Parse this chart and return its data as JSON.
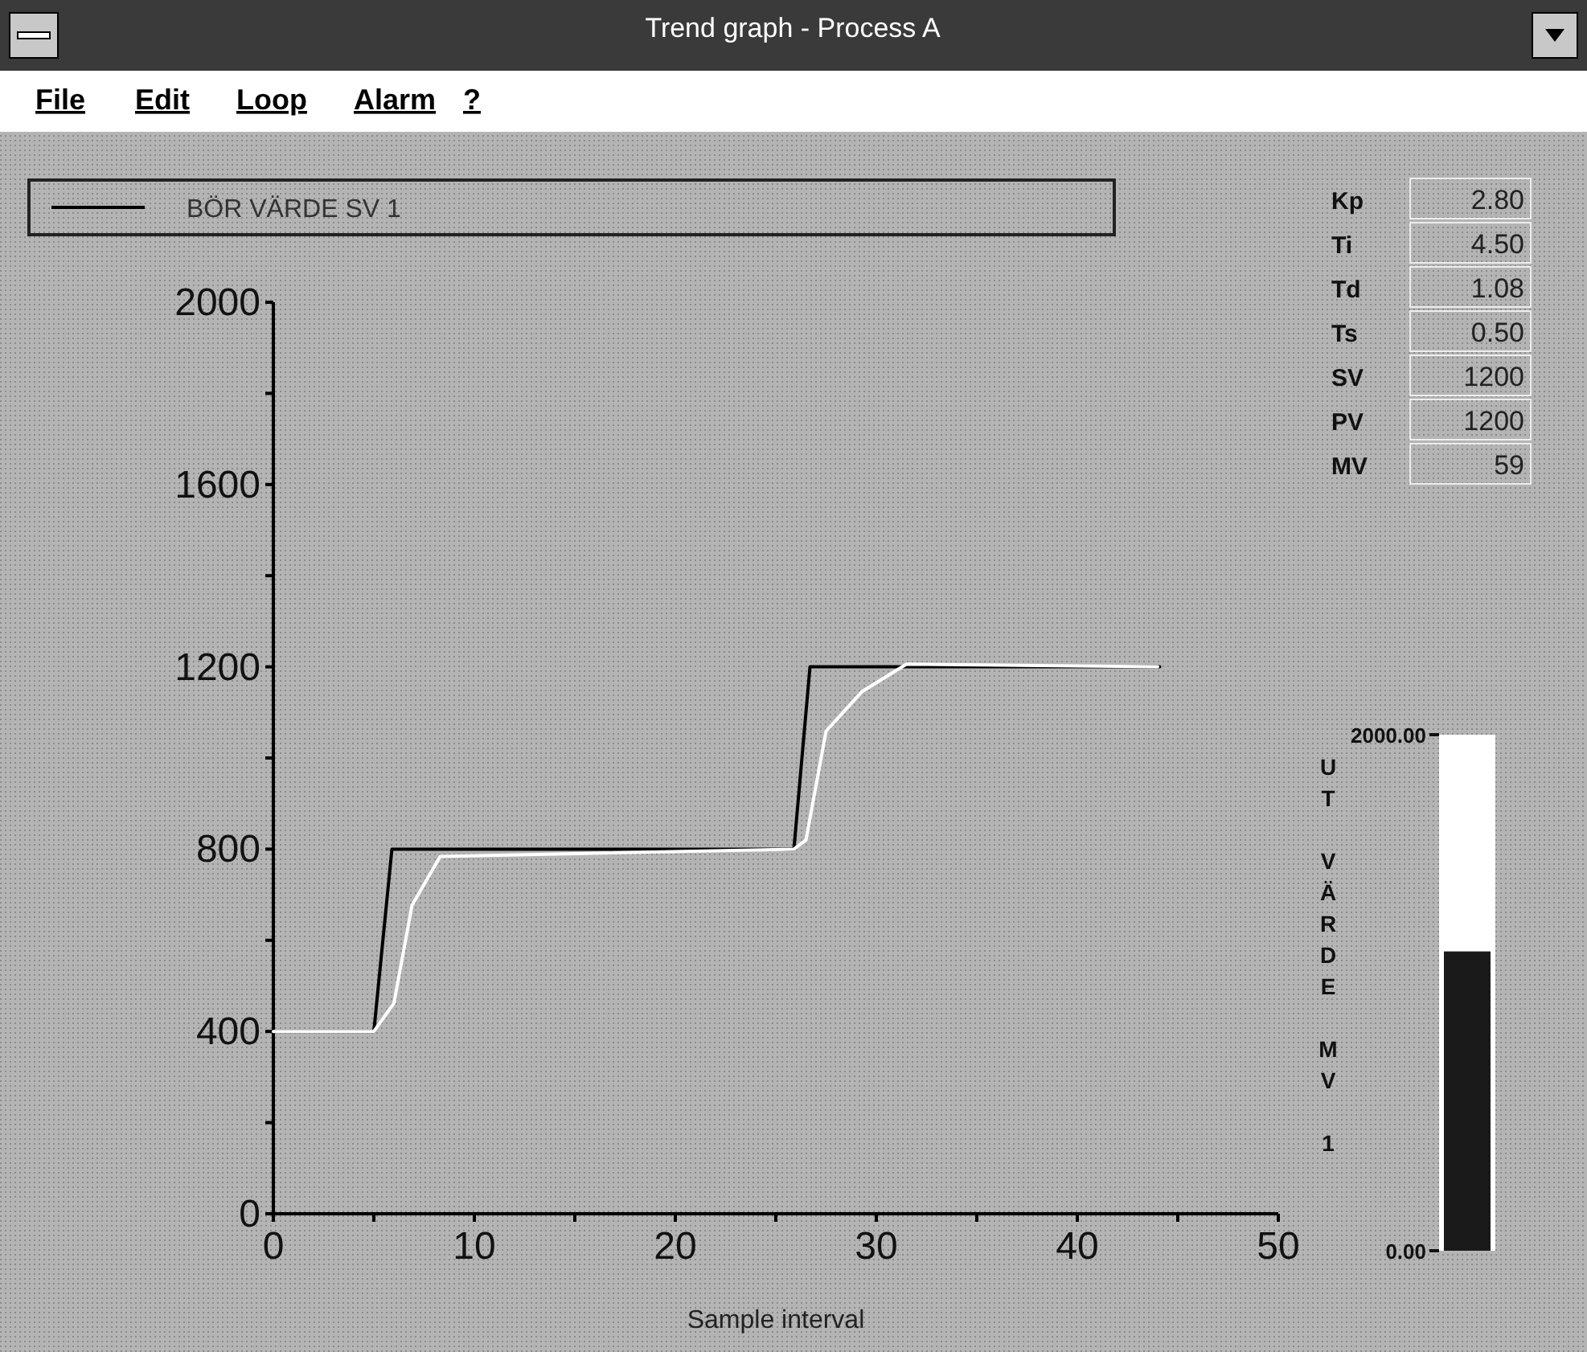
{
  "chart_data": [
    {
      "type": "line",
      "title": "Trend graph - Process A",
      "xlabel": "Sample interval",
      "annotations": [
        "File",
        "Edit",
        "Loop",
        "Alarm",
        "?"
      ],
      "xlim": [
        0,
        50
      ],
      "ylim": [
        0,
        2000
      ],
      "xticks": [
        0,
        {
          "value": 5,
          "label": null
        },
        10,
        {
          "value": 15,
          "label": null
        },
        20,
        {
          "value": 25,
          "label": null
        },
        30,
        {
          "value": 35,
          "label": null
        },
        40,
        {
          "value": 45,
          "label": null
        },
        50
      ],
      "yticks": [
        0,
        {
          "value": 200,
          "label": null
        },
        400,
        {
          "value": 600,
          "label": null
        },
        800,
        {
          "value": 1000,
          "label": null
        },
        1200,
        {
          "value": 1400,
          "label": null
        },
        1600,
        {
          "value": 1800,
          "label": null
        },
        2000
      ],
      "legend": "top left",
      "grid": false,
      "marker": "none",
      "line_style": "solid",
      "series": [
        {
          "name": "BÖR VÄRDE SV 1",
          "color": "#000000",
          "x": [
            0,
            5,
            5.9,
            25.9,
            26.7,
            44.1
          ],
          "values": [
            400,
            400,
            800,
            800,
            1200,
            1200
          ]
        },
        {
          "color": "#ffffff",
          "x": [
            0,
            5,
            6,
            6.9,
            8.3,
            25.9,
            26.5,
            27.5,
            29.3,
            31.5,
            44
          ],
          "values": [
            400,
            400,
            462,
            677,
            784,
            800,
            820,
            1059,
            1146,
            1206,
            1200
          ]
        }
      ]
    },
    {
      "type": "other",
      "categories": [
        "Kp",
        "Ti",
        "Td",
        "Ts",
        "SV",
        "PV",
        "MV"
      ],
      "value_labels": [
        "2.80",
        "4.50",
        "1.08",
        "0.50",
        "1200",
        "1200",
        "59"
      ]
    },
    {
      "type": "bar",
      "ylabel": "UT VÄRDE MV 1",
      "categories": [
        null
      ],
      "values": [
        1160
      ],
      "color": "#1a1a1a",
      "ylim": [
        0,
        2000
      ],
      "yticks": [
        {
          "value": 2000,
          "label": "2000.00"
        },
        {
          "value": 0,
          "label": "0.00"
        }
      ]
    }
  ]
}
